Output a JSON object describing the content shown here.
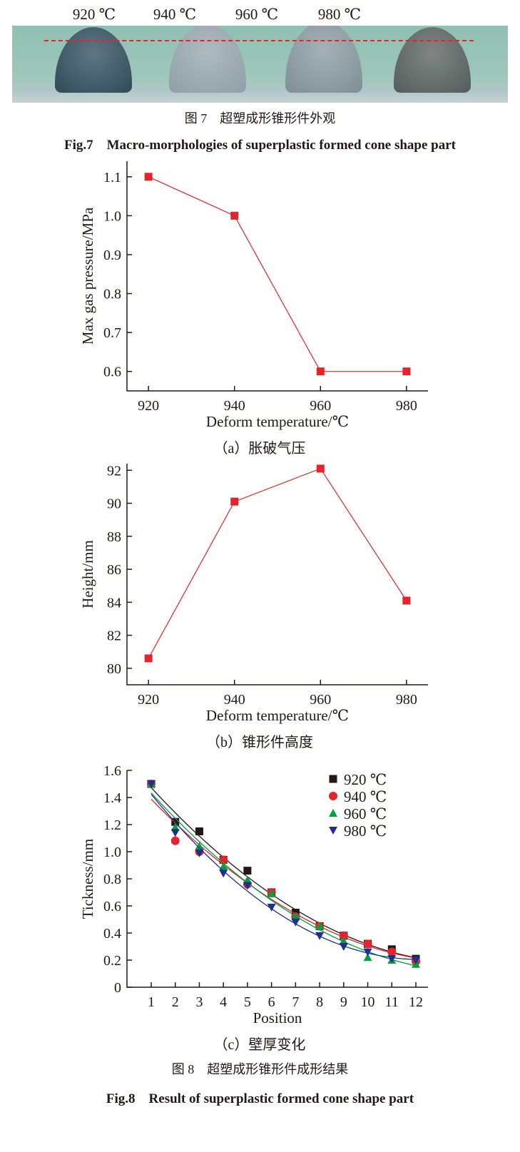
{
  "fig7": {
    "temps": [
      "920 ℃",
      "940 ℃",
      "960 ℃",
      "980 ℃"
    ],
    "caption_cn": "图 7　超塑成形锥形件外观",
    "caption_en": "Fig.7　Macro-morphologies of superplastic formed cone shape part",
    "photo": "four cone parts on green background with red dashed height reference line"
  },
  "fig8": {
    "caption_cn": "图 8　超塑成形锥形件成形结果",
    "caption_en": "Fig.8　Result of superplastic formed cone shape part"
  },
  "chart_data": [
    {
      "type": "line",
      "subcaption": "（a）胀破气压",
      "xlabel": "Deform temperature/℃",
      "ylabel": "Max gas pressure/MPa",
      "x": [
        920,
        940,
        960,
        980
      ],
      "values": [
        1.1,
        1.0,
        0.6,
        0.6
      ],
      "xlim": [
        915,
        985
      ],
      "ylim": [
        0.55,
        1.14
      ],
      "yticks": [
        "0.6",
        "0.7",
        "0.8",
        "0.9",
        "1.0",
        "1.1"
      ],
      "xticks": [
        "920",
        "940",
        "960",
        "980"
      ],
      "color": "#e5232b",
      "marker": "square"
    },
    {
      "type": "line",
      "subcaption": "（b）锥形件高度",
      "xlabel": "Deform temperature/℃",
      "ylabel": "Height/mm",
      "x": [
        920,
        940,
        960,
        980
      ],
      "values": [
        80.6,
        90.1,
        92.1,
        84.1
      ],
      "xlim": [
        915,
        985
      ],
      "ylim": [
        79,
        92.4
      ],
      "yticks": [
        "80",
        "82",
        "84",
        "86",
        "88",
        "90",
        "92"
      ],
      "xticks": [
        "920",
        "940",
        "960",
        "980"
      ],
      "color": "#e5232b",
      "marker": "square"
    },
    {
      "type": "scatter",
      "subcaption": "（c）壁厚变化",
      "xlabel": "Position",
      "ylabel": "Tickness/mm",
      "x": [
        1,
        2,
        3,
        4,
        5,
        6,
        7,
        8,
        9,
        10,
        11,
        12
      ],
      "xlim": [
        0,
        12.2
      ],
      "ylim": [
        0,
        1.6
      ],
      "yticks": [
        "0",
        "0.2",
        "0.4",
        "0.6",
        "0.8",
        "1.0",
        "1.2",
        "1.4",
        "1.6"
      ],
      "xticks": [
        "1",
        "2",
        "3",
        "4",
        "5",
        "6",
        "7",
        "8",
        "9",
        "10",
        "11",
        "12"
      ],
      "legend_placement": "top-right",
      "fit_lines": true,
      "series": [
        {
          "name": "920 ℃",
          "color": "#231815",
          "marker": "square",
          "values": [
            1.5,
            1.22,
            1.15,
            0.94,
            0.86,
            0.7,
            0.55,
            0.45,
            0.38,
            0.32,
            0.28,
            0.21
          ]
        },
        {
          "name": "940 ℃",
          "color": "#e5232b",
          "marker": "circle",
          "values": [
            1.5,
            1.08,
            1.0,
            0.94,
            0.76,
            0.7,
            0.52,
            0.45,
            0.38,
            0.32,
            0.26,
            0.19
          ]
        },
        {
          "name": "960 ℃",
          "color": "#00a03e",
          "marker": "triangle-up",
          "values": [
            1.5,
            1.18,
            1.04,
            0.89,
            0.79,
            0.69,
            0.52,
            0.45,
            0.34,
            0.22,
            0.2,
            0.17
          ]
        },
        {
          "name": "980 ℃",
          "color": "#1d2f8f",
          "marker": "triangle-down",
          "values": [
            1.5,
            1.14,
            0.99,
            0.84,
            0.75,
            0.59,
            0.48,
            0.38,
            0.3,
            0.26,
            0.21,
            0.2
          ]
        }
      ]
    }
  ]
}
